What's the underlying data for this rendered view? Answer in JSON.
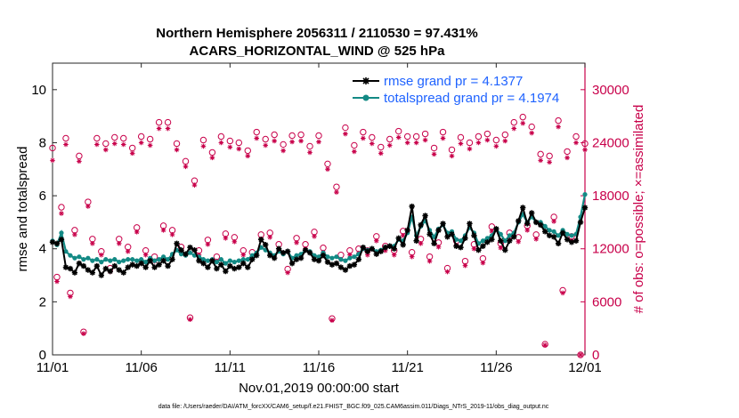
{
  "chart_data": {
    "type": "line",
    "title": "Northern Hemisphere 2056311 / 2110530 = 97.431%",
    "subtitle": "ACARS_HORIZONTAL_WIND @ 525 hPa",
    "xlabel": "Nov.01,2019 00:00:00 start",
    "ylabel": "rmse and totalspread",
    "ylabel_right": "# of obs: o=possible; ×=assimilated",
    "footnote": "data file: /Users/raeder/DAI/ATM_forcXX/CAM6_setup/f.e21.FHIST_BGC.f09_025.CAM6assim.011/Diags_NTrS_2019-11/obs_diag_output.nc",
    "xlim": [
      0,
      30
    ],
    "ylim": [
      0,
      11
    ],
    "ylim_right": [
      0,
      33000
    ],
    "x_tick_values": [
      0,
      5,
      10,
      15,
      20,
      25,
      30
    ],
    "x_tick_labels": [
      "11/01",
      "11/06",
      "11/11",
      "11/16",
      "11/21",
      "11/26",
      "12/01"
    ],
    "y_tick_values": [
      0,
      2,
      4,
      6,
      8,
      10
    ],
    "y_tick_labels": [
      "0",
      "2",
      "4",
      "6",
      "8",
      "10"
    ],
    "y_right_tick_values": [
      0,
      6000,
      12000,
      18000,
      24000,
      30000
    ],
    "y_right_tick_labels": [
      "0",
      "6000",
      "12000",
      "18000",
      "24000",
      "30000"
    ],
    "legend_position": "top-right",
    "colors": {
      "rmse": "#000000",
      "spread": "#138a85",
      "obs": "#c8004a",
      "legend_text": "#1f63ff"
    },
    "series": [
      {
        "name": "rmse grand pr = 4.1377",
        "marker": "star",
        "x": [
          0,
          0.25,
          0.5,
          0.75,
          1,
          1.25,
          1.5,
          1.75,
          2,
          2.25,
          2.5,
          2.75,
          3,
          3.25,
          3.5,
          3.75,
          4,
          4.25,
          4.5,
          4.75,
          5,
          5.25,
          5.5,
          5.75,
          6,
          6.25,
          6.5,
          6.75,
          7,
          7.25,
          7.5,
          7.75,
          8,
          8.25,
          8.5,
          8.75,
          9,
          9.25,
          9.5,
          9.75,
          10,
          10.25,
          10.5,
          10.75,
          11,
          11.25,
          11.5,
          11.75,
          12,
          12.25,
          12.5,
          12.75,
          13,
          13.25,
          13.5,
          13.75,
          14,
          14.25,
          14.5,
          14.75,
          15,
          15.25,
          15.5,
          15.75,
          16,
          16.25,
          16.5,
          16.75,
          17,
          17.25,
          17.5,
          17.75,
          18,
          18.25,
          18.5,
          18.75,
          19,
          19.25,
          19.5,
          19.75,
          20,
          20.25,
          20.5,
          20.75,
          21,
          21.25,
          21.5,
          21.75,
          22,
          22.25,
          22.5,
          22.75,
          23,
          23.25,
          23.5,
          23.75,
          24,
          24.25,
          24.5,
          24.75,
          25,
          25.25,
          25.5,
          25.75,
          26,
          26.25,
          26.5,
          26.75,
          27,
          27.25,
          27.5,
          27.75,
          28,
          28.25,
          28.5,
          28.75,
          29,
          29.25,
          29.5,
          29.75,
          30
        ],
        "values": [
          4.25,
          4.2,
          4.35,
          3.3,
          3.25,
          3.1,
          3.45,
          3.35,
          3.2,
          3.1,
          3.35,
          3.0,
          3.25,
          3.15,
          3.35,
          3.2,
          3.1,
          3.3,
          3.4,
          3.35,
          3.45,
          3.3,
          3.55,
          3.3,
          3.4,
          3.55,
          3.35,
          3.6,
          4.2,
          3.95,
          3.8,
          4.05,
          3.95,
          3.55,
          3.45,
          3.3,
          3.55,
          3.25,
          3.4,
          3.15,
          3.35,
          3.25,
          3.3,
          3.45,
          3.3,
          3.6,
          3.75,
          4.35,
          4.15,
          3.75,
          3.65,
          4.0,
          3.85,
          3.9,
          3.45,
          3.6,
          3.65,
          3.95,
          3.85,
          3.6,
          3.55,
          3.75,
          3.5,
          3.4,
          3.45,
          3.3,
          3.2,
          3.35,
          3.4,
          3.6,
          4.05,
          3.9,
          4.0,
          3.8,
          3.9,
          4.05,
          4.1,
          4.0,
          4.4,
          4.15,
          4.7,
          5.6,
          4.3,
          4.9,
          5.25,
          4.55,
          4.2,
          4.7,
          4.95,
          4.45,
          4.55,
          4.1,
          4.05,
          4.4,
          4.95,
          4.5,
          3.95,
          4.1,
          4.25,
          4.35,
          4.75,
          4.3,
          3.95,
          4.3,
          4.45,
          5.05,
          5.55,
          4.95,
          5.35,
          5.0,
          4.9,
          4.65,
          4.5,
          4.45,
          4.2,
          4.6,
          4.35,
          4.25,
          4.3,
          5.0,
          5.55
        ]
      },
      {
        "name": "totalspread grand pr = 4.1974",
        "marker": "dot",
        "x": [
          0,
          0.25,
          0.5,
          0.75,
          1,
          1.25,
          1.5,
          1.75,
          2,
          2.25,
          2.5,
          2.75,
          3,
          3.25,
          3.5,
          3.75,
          4,
          4.25,
          4.5,
          4.75,
          5,
          5.25,
          5.5,
          5.75,
          6,
          6.25,
          6.5,
          6.75,
          7,
          7.25,
          7.5,
          7.75,
          8,
          8.25,
          8.5,
          8.75,
          9,
          9.25,
          9.5,
          9.75,
          10,
          10.25,
          10.5,
          10.75,
          11,
          11.25,
          11.5,
          11.75,
          12,
          12.25,
          12.5,
          12.75,
          13,
          13.25,
          13.5,
          13.75,
          14,
          14.25,
          14.5,
          14.75,
          15,
          15.25,
          15.5,
          15.75,
          16,
          16.25,
          16.5,
          16.75,
          17,
          17.25,
          17.5,
          17.75,
          18,
          18.25,
          18.5,
          18.75,
          19,
          19.25,
          19.5,
          19.75,
          20,
          20.25,
          20.5,
          20.75,
          21,
          21.25,
          21.5,
          21.75,
          22,
          22.25,
          22.5,
          22.75,
          23,
          23.25,
          23.5,
          23.75,
          24,
          24.25,
          24.5,
          24.75,
          25,
          25.25,
          25.5,
          25.75,
          26,
          26.25,
          26.5,
          26.75,
          27,
          27.25,
          27.5,
          27.75,
          28,
          28.25,
          28.5,
          28.75,
          29,
          29.25,
          29.5,
          29.75,
          30
        ],
        "values": [
          4.3,
          4.15,
          4.6,
          3.9,
          3.75,
          3.65,
          3.7,
          3.6,
          3.65,
          3.55,
          3.6,
          3.5,
          3.6,
          3.55,
          3.6,
          3.5,
          3.55,
          3.6,
          3.6,
          3.55,
          3.6,
          3.5,
          3.65,
          3.55,
          3.6,
          3.7,
          3.6,
          3.8,
          3.95,
          3.8,
          3.75,
          3.85,
          3.75,
          3.7,
          3.6,
          3.55,
          3.6,
          3.5,
          3.6,
          3.45,
          3.55,
          3.5,
          3.55,
          3.6,
          3.6,
          3.75,
          3.85,
          4.05,
          3.95,
          3.85,
          3.75,
          3.9,
          3.8,
          3.9,
          3.65,
          3.75,
          3.8,
          3.95,
          3.9,
          3.75,
          3.7,
          3.85,
          3.7,
          3.65,
          3.7,
          3.6,
          3.55,
          3.65,
          3.7,
          3.8,
          4.0,
          3.95,
          4.0,
          3.9,
          3.95,
          4.05,
          4.1,
          4.1,
          4.35,
          4.3,
          4.6,
          5.2,
          4.5,
          4.85,
          5.05,
          4.7,
          4.45,
          4.75,
          4.9,
          4.6,
          4.65,
          4.35,
          4.3,
          4.5,
          4.8,
          4.6,
          4.2,
          4.3,
          4.4,
          4.5,
          4.75,
          4.55,
          4.3,
          4.5,
          4.6,
          5.0,
          5.3,
          5.0,
          5.2,
          5.0,
          5.0,
          4.85,
          4.7,
          4.65,
          4.5,
          4.7,
          4.55,
          4.5,
          4.55,
          5.2,
          6.05
        ]
      },
      {
        "name": "obs possible",
        "marker": "circle",
        "axis": "right",
        "x": [
          0,
          0.25,
          0.5,
          0.75,
          1,
          1.25,
          1.5,
          1.75,
          2,
          2.25,
          2.5,
          2.75,
          3,
          3.25,
          3.5,
          3.75,
          4,
          4.25,
          4.5,
          4.75,
          5,
          5.25,
          5.5,
          5.75,
          6,
          6.25,
          6.5,
          6.75,
          7,
          7.25,
          7.5,
          7.75,
          8,
          8.25,
          8.5,
          8.75,
          9,
          9.25,
          9.5,
          9.75,
          10,
          10.25,
          10.5,
          10.75,
          11,
          11.25,
          11.5,
          11.75,
          12,
          12.25,
          12.5,
          12.75,
          13,
          13.25,
          13.5,
          13.75,
          14,
          14.25,
          14.5,
          14.75,
          15,
          15.25,
          15.5,
          15.75,
          16,
          16.25,
          16.5,
          16.75,
          17,
          17.25,
          17.5,
          17.75,
          18,
          18.25,
          18.5,
          18.75,
          19,
          19.25,
          19.5,
          19.75,
          20,
          20.25,
          20.5,
          20.75,
          21,
          21.25,
          21.5,
          21.75,
          22,
          22.25,
          22.5,
          22.75,
          23,
          23.25,
          23.5,
          23.75,
          24,
          24.25,
          24.5,
          24.75,
          25,
          25.25,
          25.5,
          25.75,
          26,
          26.25,
          26.5,
          26.75,
          27,
          27.25,
          27.5,
          27.75,
          28,
          28.25,
          28.5,
          28.75,
          29,
          29.25,
          29.5,
          29.75,
          30
        ],
        "values": [
          23400,
          8800,
          16700,
          24500,
          7000,
          14100,
          22500,
          2600,
          17300,
          13100,
          24500,
          11700,
          23900,
          9800,
          24600,
          13100,
          24500,
          12200,
          23400,
          14400,
          24700,
          11800,
          24400,
          11100,
          26300,
          14600,
          26300,
          14100,
          23900,
          12200,
          21900,
          4200,
          19700,
          11800,
          24300,
          13000,
          22900,
          11100,
          24700,
          13700,
          24200,
          13300,
          24000,
          11800,
          23100,
          11600,
          25200,
          13600,
          24400,
          13800,
          24900,
          12500,
          23800,
          9700,
          24800,
          13200,
          24900,
          12500,
          23600,
          13900,
          24800,
          12100,
          21600,
          4100,
          19000,
          11300,
          25700,
          11800,
          23700,
          12000,
          25200,
          11800,
          24600,
          13400,
          23500,
          12300,
          24400,
          11800,
          25300,
          14000,
          24700,
          11600,
          24700,
          13100,
          25000,
          11100,
          23400,
          12700,
          25200,
          9800,
          23200,
          12900,
          24600,
          10600,
          24000,
          12500,
          24700,
          10900,
          25000,
          14500,
          24300,
          12600,
          24900,
          13800,
          26300,
          13300,
          26900,
          14600,
          25800,
          13600,
          22700,
          1200,
          22500,
          15600,
          26500,
          7300,
          23000,
          13400,
          24700,
          0,
          23900
        ]
      },
      {
        "name": "obs assimilated",
        "marker": "asterisk",
        "axis": "right",
        "x": [
          0,
          0.25,
          0.5,
          0.75,
          1,
          1.25,
          1.5,
          1.75,
          2,
          2.25,
          2.5,
          2.75,
          3,
          3.25,
          3.5,
          3.75,
          4,
          4.25,
          4.5,
          4.75,
          5,
          5.25,
          5.5,
          5.75,
          6,
          6.25,
          6.5,
          6.75,
          7,
          7.25,
          7.5,
          7.75,
          8,
          8.25,
          8.5,
          8.75,
          9,
          9.25,
          9.5,
          9.75,
          10,
          10.25,
          10.5,
          10.75,
          11,
          11.25,
          11.5,
          11.75,
          12,
          12.25,
          12.5,
          12.75,
          13,
          13.25,
          13.5,
          13.75,
          14,
          14.25,
          14.5,
          14.75,
          15,
          15.25,
          15.5,
          15.75,
          16,
          16.25,
          16.5,
          16.75,
          17,
          17.25,
          17.5,
          17.75,
          18,
          18.25,
          18.5,
          18.75,
          19,
          19.25,
          19.5,
          19.75,
          20,
          20.25,
          20.5,
          20.75,
          21,
          21.25,
          21.5,
          21.75,
          22,
          22.25,
          22.5,
          22.75,
          23,
          23.25,
          23.5,
          23.75,
          24,
          24.25,
          24.5,
          24.75,
          25,
          25.25,
          25.5,
          25.75,
          26,
          26.25,
          26.5,
          26.75,
          27,
          27.25,
          27.5,
          27.75,
          28,
          28.25,
          28.5,
          28.75,
          29,
          29.25,
          29.5,
          29.75,
          30
        ],
        "values": [
          22000,
          8300,
          16000,
          23800,
          6600,
          13600,
          21900,
          2400,
          16800,
          12600,
          23800,
          11300,
          23200,
          9400,
          23900,
          12600,
          23800,
          11700,
          22800,
          13900,
          24000,
          11300,
          23700,
          10600,
          25600,
          14100,
          25600,
          13600,
          23200,
          11700,
          21300,
          4000,
          19200,
          11300,
          23600,
          12500,
          22300,
          10600,
          24000,
          13200,
          23500,
          12800,
          23300,
          11300,
          22500,
          11100,
          24500,
          13100,
          23700,
          13300,
          24200,
          12000,
          23100,
          9300,
          24100,
          12700,
          24200,
          12000,
          22900,
          13400,
          24100,
          11600,
          21000,
          3900,
          18400,
          10800,
          25000,
          11300,
          23000,
          11500,
          24500,
          11300,
          23900,
          12900,
          22800,
          11800,
          23700,
          11300,
          24600,
          13500,
          24000,
          11100,
          24000,
          12600,
          24300,
          10600,
          22700,
          12200,
          24500,
          9400,
          22500,
          12400,
          23900,
          10100,
          23300,
          12000,
          24000,
          10400,
          24300,
          14000,
          23600,
          12100,
          24200,
          13300,
          25600,
          12800,
          26200,
          14100,
          25100,
          13100,
          22000,
          1100,
          21800,
          15100,
          25800,
          7000,
          22300,
          12900,
          24000,
          0,
          23200
        ]
      }
    ],
    "legend": [
      "rmse grand pr = 4.1377",
      "totalspread grand pr = 4.1974"
    ]
  }
}
